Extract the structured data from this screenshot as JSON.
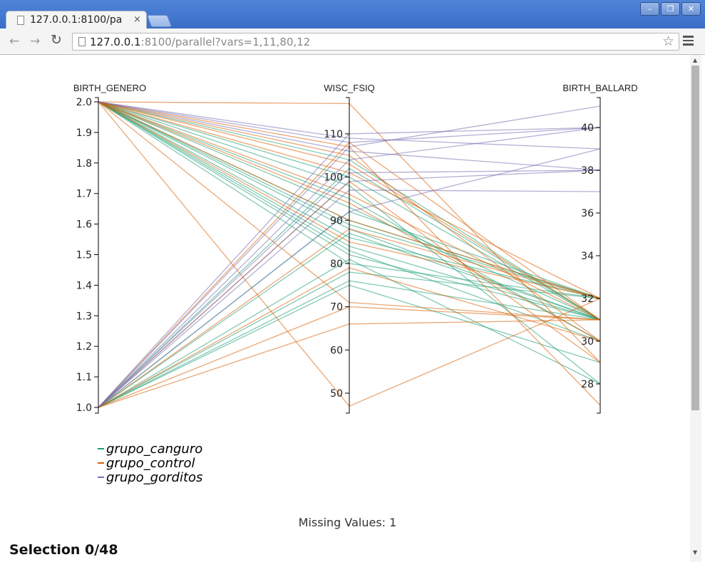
{
  "browser": {
    "tab_title": "127.0.0.1:8100/pa",
    "tab_close": "×",
    "url_host": "127.0.0.1",
    "url_rest": ":8100/parallel?vars=1,11,80,12",
    "window_buttons": [
      "–",
      "❐",
      "✕"
    ],
    "icons": {
      "back": "arrow-left",
      "forward": "arrow-right",
      "reload": "reload",
      "bookmark": "star",
      "menu": "hamburger"
    }
  },
  "chart_data": {
    "type": "parallel_coordinates",
    "axes": [
      {
        "name": "BIRTH_GENERO",
        "range": [
          1.0,
          2.0
        ],
        "ticks": [
          "1.0",
          "1.1",
          "1.2",
          "1.3",
          "1.4",
          "1.5",
          "1.6",
          "1.7",
          "1.8",
          "1.9",
          "2.0"
        ]
      },
      {
        "name": "WISC_FSIQ",
        "range": [
          46.7,
          117.4
        ],
        "ticks": [
          "50",
          "60",
          "70",
          "80",
          "90",
          "100",
          "110"
        ]
      },
      {
        "name": "BIRTH_BALLARD",
        "range": [
          26.9,
          41.2
        ],
        "ticks": [
          "28",
          "30",
          "32",
          "34",
          "36",
          "38",
          "40"
        ]
      }
    ],
    "groups": [
      {
        "name": "grupo_canguro",
        "color": "#1b9e77"
      },
      {
        "name": "grupo_control",
        "color": "#d95f02"
      },
      {
        "name": "grupo_gorditos",
        "color": "#7570b3"
      }
    ],
    "records": [
      {
        "group": "grupo_canguro",
        "values": [
          2,
          104,
          31
        ]
      },
      {
        "group": "grupo_canguro",
        "values": [
          2,
          100,
          31
        ]
      },
      {
        "group": "grupo_canguro",
        "values": [
          2,
          98,
          28
        ]
      },
      {
        "group": "grupo_canguro",
        "values": [
          2,
          95,
          30
        ]
      },
      {
        "group": "grupo_canguro",
        "values": [
          2,
          93,
          31
        ]
      },
      {
        "group": "grupo_canguro",
        "values": [
          2,
          90,
          32
        ]
      },
      {
        "group": "grupo_canguro",
        "values": [
          2,
          89,
          32
        ]
      },
      {
        "group": "grupo_canguro",
        "values": [
          2,
          88,
          31
        ]
      },
      {
        "group": "grupo_canguro",
        "values": [
          2,
          86,
          32
        ]
      },
      {
        "group": "grupo_canguro",
        "values": [
          2,
          84,
          31
        ]
      },
      {
        "group": "grupo_canguro",
        "values": [
          2,
          83,
          30
        ]
      },
      {
        "group": "grupo_canguro",
        "values": [
          2,
          82,
          31
        ]
      },
      {
        "group": "grupo_canguro",
        "values": [
          2,
          80,
          32
        ]
      },
      {
        "group": "grupo_canguro",
        "values": [
          1,
          102,
          31
        ]
      },
      {
        "group": "grupo_canguro",
        "values": [
          1,
          92,
          32
        ]
      },
      {
        "group": "grupo_canguro",
        "values": [
          1,
          87,
          31
        ]
      },
      {
        "group": "grupo_canguro",
        "values": [
          1,
          81,
          28
        ]
      },
      {
        "group": "grupo_canguro",
        "values": [
          1,
          78,
          32
        ]
      },
      {
        "group": "grupo_canguro",
        "values": [
          1,
          76,
          31
        ]
      },
      {
        "group": "grupo_canguro",
        "values": [
          1,
          75,
          29
        ]
      },
      {
        "group": "grupo_control",
        "values": [
          2,
          117,
          29
        ]
      },
      {
        "group": "grupo_control",
        "values": [
          2,
          107,
          27
        ]
      },
      {
        "group": "grupo_control",
        "values": [
          2,
          105,
          30
        ]
      },
      {
        "group": "grupo_control",
        "values": [
          2,
          103,
          31
        ]
      },
      {
        "group": "grupo_control",
        "values": [
          2,
          101,
          32
        ]
      },
      {
        "group": "grupo_control",
        "values": [
          2,
          96,
          31
        ]
      },
      {
        "group": "grupo_control",
        "values": [
          2,
          94,
          30
        ]
      },
      {
        "group": "grupo_control",
        "values": [
          2,
          90,
          32
        ]
      },
      {
        "group": "grupo_control",
        "values": [
          2,
          85,
          32
        ]
      },
      {
        "group": "grupo_control",
        "values": [
          2,
          71,
          31
        ]
      },
      {
        "group": "grupo_control",
        "values": [
          2,
          47,
          32
        ]
      },
      {
        "group": "grupo_control",
        "values": [
          1,
          108,
          31
        ]
      },
      {
        "group": "grupo_control",
        "values": [
          1,
          99,
          29
        ]
      },
      {
        "group": "grupo_control",
        "values": [
          1,
          88,
          32
        ]
      },
      {
        "group": "grupo_control",
        "values": [
          1,
          79,
          30
        ]
      },
      {
        "group": "grupo_control",
        "values": [
          1,
          70,
          31
        ]
      },
      {
        "group": "grupo_control",
        "values": [
          1,
          66,
          31
        ]
      },
      {
        "group": "grupo_gorditos",
        "values": [
          2,
          109,
          39
        ]
      },
      {
        "group": "grupo_gorditos",
        "values": [
          2,
          108,
          40
        ]
      },
      {
        "group": "grupo_gorditos",
        "values": [
          2,
          106,
          38
        ]
      },
      {
        "group": "grupo_gorditos",
        "values": [
          1,
          110,
          40
        ]
      },
      {
        "group": "grupo_gorditos",
        "values": [
          1,
          107,
          41
        ]
      },
      {
        "group": "grupo_gorditos",
        "values": [
          1,
          104,
          40
        ]
      },
      {
        "group": "grupo_gorditos",
        "values": [
          1,
          101,
          38
        ]
      },
      {
        "group": "grupo_gorditos",
        "values": [
          1,
          99,
          38
        ]
      },
      {
        "group": "grupo_gorditos",
        "values": [
          1,
          97,
          37
        ]
      },
      {
        "group": "grupo_gorditos",
        "values": [
          1,
          92,
          39
        ]
      }
    ]
  },
  "footer": {
    "missing_values": "Missing Values: 1",
    "selection": "Selection 0/48"
  }
}
